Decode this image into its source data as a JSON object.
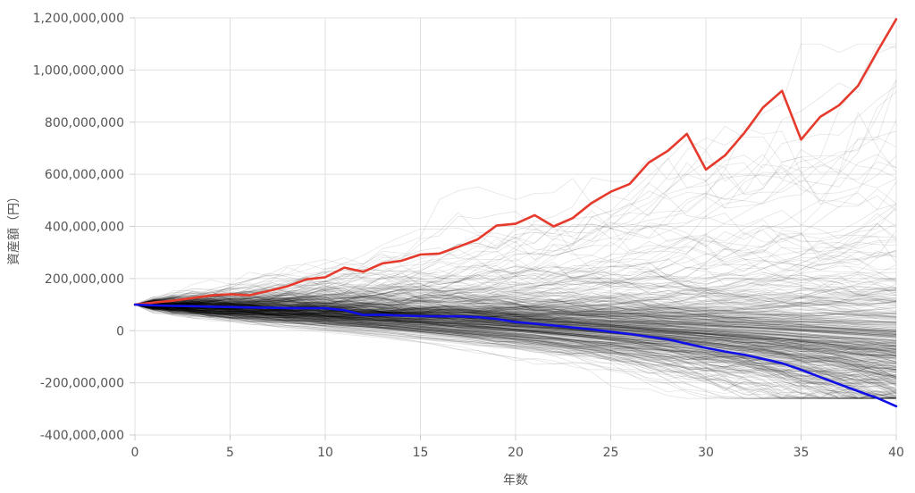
{
  "chart_data": {
    "type": "line",
    "title": "",
    "xlabel": "年数",
    "ylabel": "資産額（円）",
    "xlim": [
      0,
      40
    ],
    "ylim": [
      -400000000,
      1200000000
    ],
    "xticks": [
      0,
      5,
      10,
      15,
      20,
      25,
      30,
      35,
      40
    ],
    "xtick_labels": [
      "0",
      "5",
      "10",
      "15",
      "20",
      "25",
      "30",
      "35",
      "40"
    ],
    "yticks": [
      -400000000,
      -200000000,
      0,
      200000000,
      400000000,
      600000000,
      800000000,
      1000000000,
      1200000000
    ],
    "ytick_labels": [
      "-400,000,000",
      "-200,000,000",
      "0",
      "200,000,000",
      "400,000,000",
      "600,000,000",
      "800,000,000",
      "1,000,000,000",
      "1,200,000,000"
    ],
    "grid": true,
    "legend": "none",
    "colors": {
      "best": "#e53a2c",
      "worst": "#1010e6",
      "simulations": "#000000",
      "grid": "#e0e0e0",
      "axis": "#cccccc"
    },
    "simulation_paths": {
      "count": 500,
      "start_value": 100000000,
      "opacity": 0.12
    },
    "highlighted_series": [
      {
        "role": "best",
        "x": [
          0,
          1,
          2,
          3,
          4,
          5,
          6,
          7,
          8,
          9,
          10,
          11,
          12,
          13,
          14,
          15,
          16,
          17,
          18,
          19,
          20,
          21,
          22,
          23,
          24,
          25,
          26,
          27,
          28,
          29,
          30,
          31,
          32,
          33,
          34,
          35,
          36,
          37,
          38,
          39,
          40
        ],
        "values": [
          100000000,
          108000000,
          115000000,
          125000000,
          135000000,
          140000000,
          136000000,
          152000000,
          170000000,
          197000000,
          205000000,
          242000000,
          226000000,
          258000000,
          268000000,
          292000000,
          296000000,
          322000000,
          350000000,
          403000000,
          410000000,
          443000000,
          400000000,
          432000000,
          490000000,
          533000000,
          563000000,
          645000000,
          690000000,
          755000000,
          618000000,
          672000000,
          757000000,
          856000000,
          920000000,
          733000000,
          820000000,
          865000000,
          940000000,
          1070000000,
          1195000000
        ]
      },
      {
        "role": "worst",
        "x": [
          0,
          1,
          2,
          3,
          4,
          5,
          6,
          7,
          8,
          9,
          10,
          11,
          12,
          13,
          14,
          15,
          16,
          17,
          18,
          19,
          20,
          21,
          22,
          23,
          24,
          25,
          26,
          27,
          28,
          29,
          30,
          31,
          32,
          33,
          34,
          35,
          36,
          37,
          38,
          39,
          40
        ],
        "values": [
          100000000,
          97000000,
          95000000,
          94000000,
          92000000,
          91000000,
          89000000,
          88000000,
          87000000,
          86000000,
          86000000,
          79000000,
          60000000,
          61000000,
          58000000,
          56000000,
          55000000,
          55000000,
          52000000,
          45000000,
          33000000,
          27000000,
          20000000,
          12000000,
          5000000,
          -4000000,
          -13000000,
          -23000000,
          -33000000,
          -50000000,
          -66000000,
          -80000000,
          -92000000,
          -108000000,
          -125000000,
          -150000000,
          -178000000,
          -205000000,
          -232000000,
          -258000000,
          -290000000
        ]
      }
    ]
  }
}
